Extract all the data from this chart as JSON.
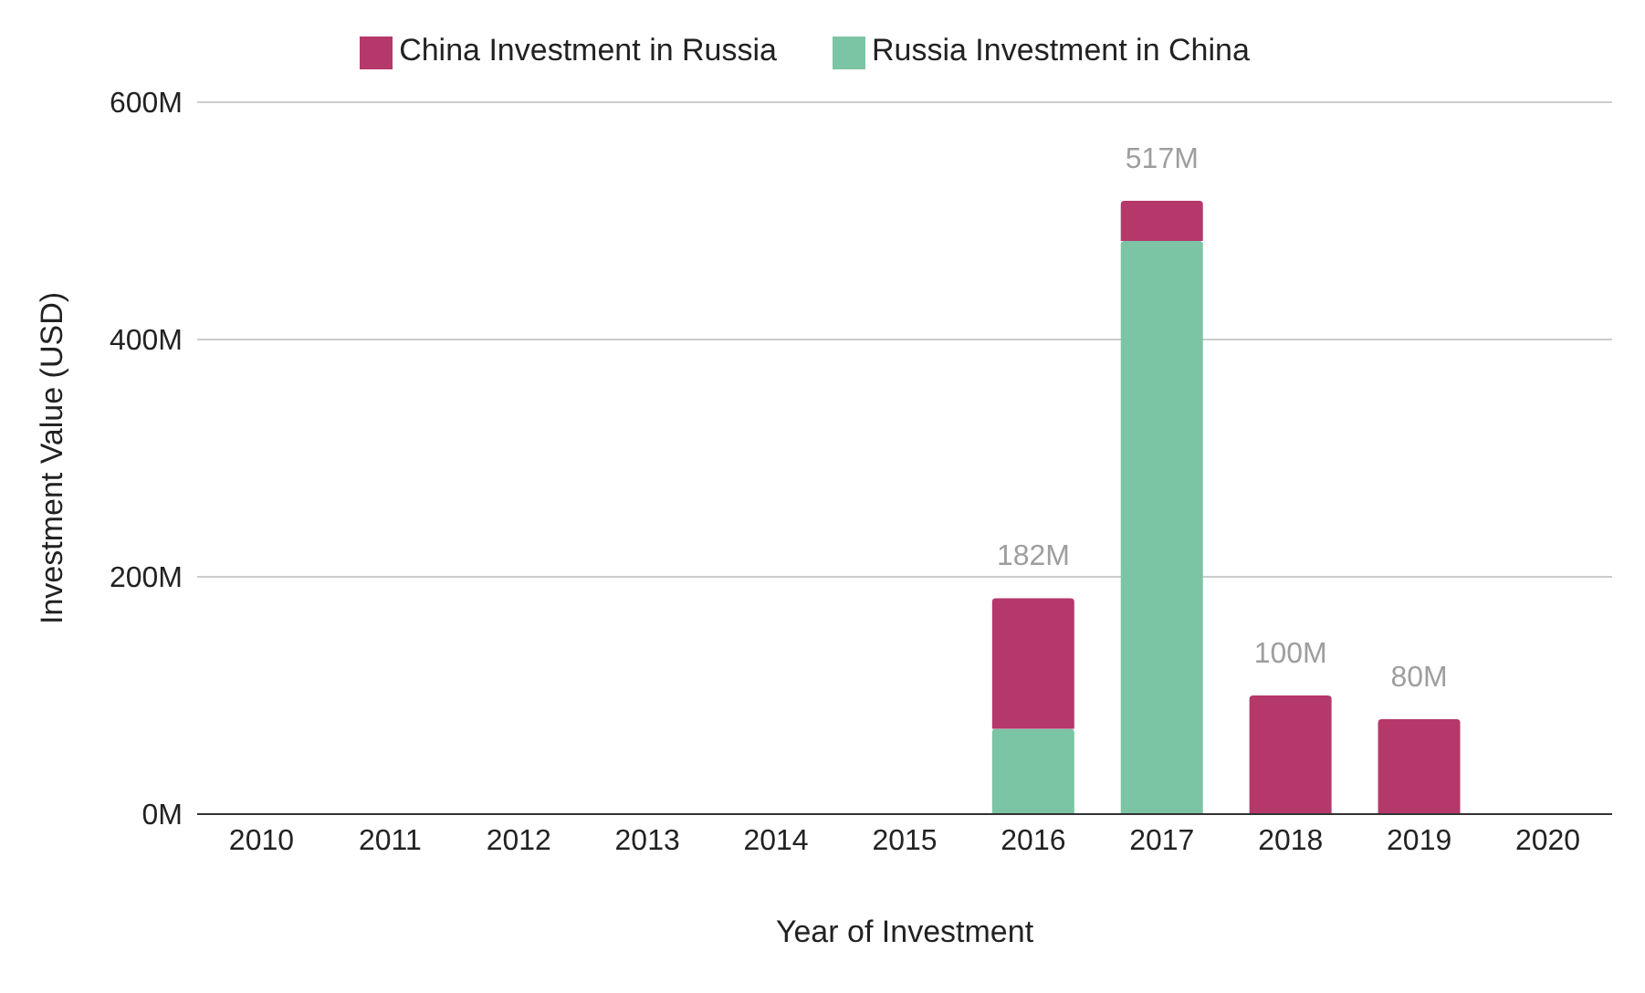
{
  "chart_data": {
    "type": "bar",
    "stacked": true,
    "xlabel": "Year of Investment",
    "ylabel": "Investment Value (USD)",
    "categories": [
      "2010",
      "2011",
      "2012",
      "2013",
      "2014",
      "2015",
      "2016",
      "2017",
      "2018",
      "2019",
      "2020"
    ],
    "series": [
      {
        "name": "Russia Investment in China",
        "color": "#7bc5a5",
        "values": [
          null,
          null,
          null,
          null,
          null,
          null,
          72,
          483,
          null,
          null,
          null
        ]
      },
      {
        "name": "China Investment in Russia",
        "color": "#b5386b",
        "values": [
          null,
          null,
          null,
          null,
          null,
          null,
          110,
          34,
          100,
          80,
          null
        ]
      }
    ],
    "totals": [
      null,
      null,
      null,
      null,
      null,
      null,
      "182M",
      "517M",
      "100M",
      "80M",
      null
    ],
    "ylim": [
      0,
      600
    ],
    "yticks": [
      {
        "value": 0,
        "label": "0M"
      },
      {
        "value": 200,
        "label": "200M"
      },
      {
        "value": 400,
        "label": "400M"
      },
      {
        "value": 600,
        "label": "600M"
      }
    ],
    "grid": "y",
    "legend": "top"
  }
}
